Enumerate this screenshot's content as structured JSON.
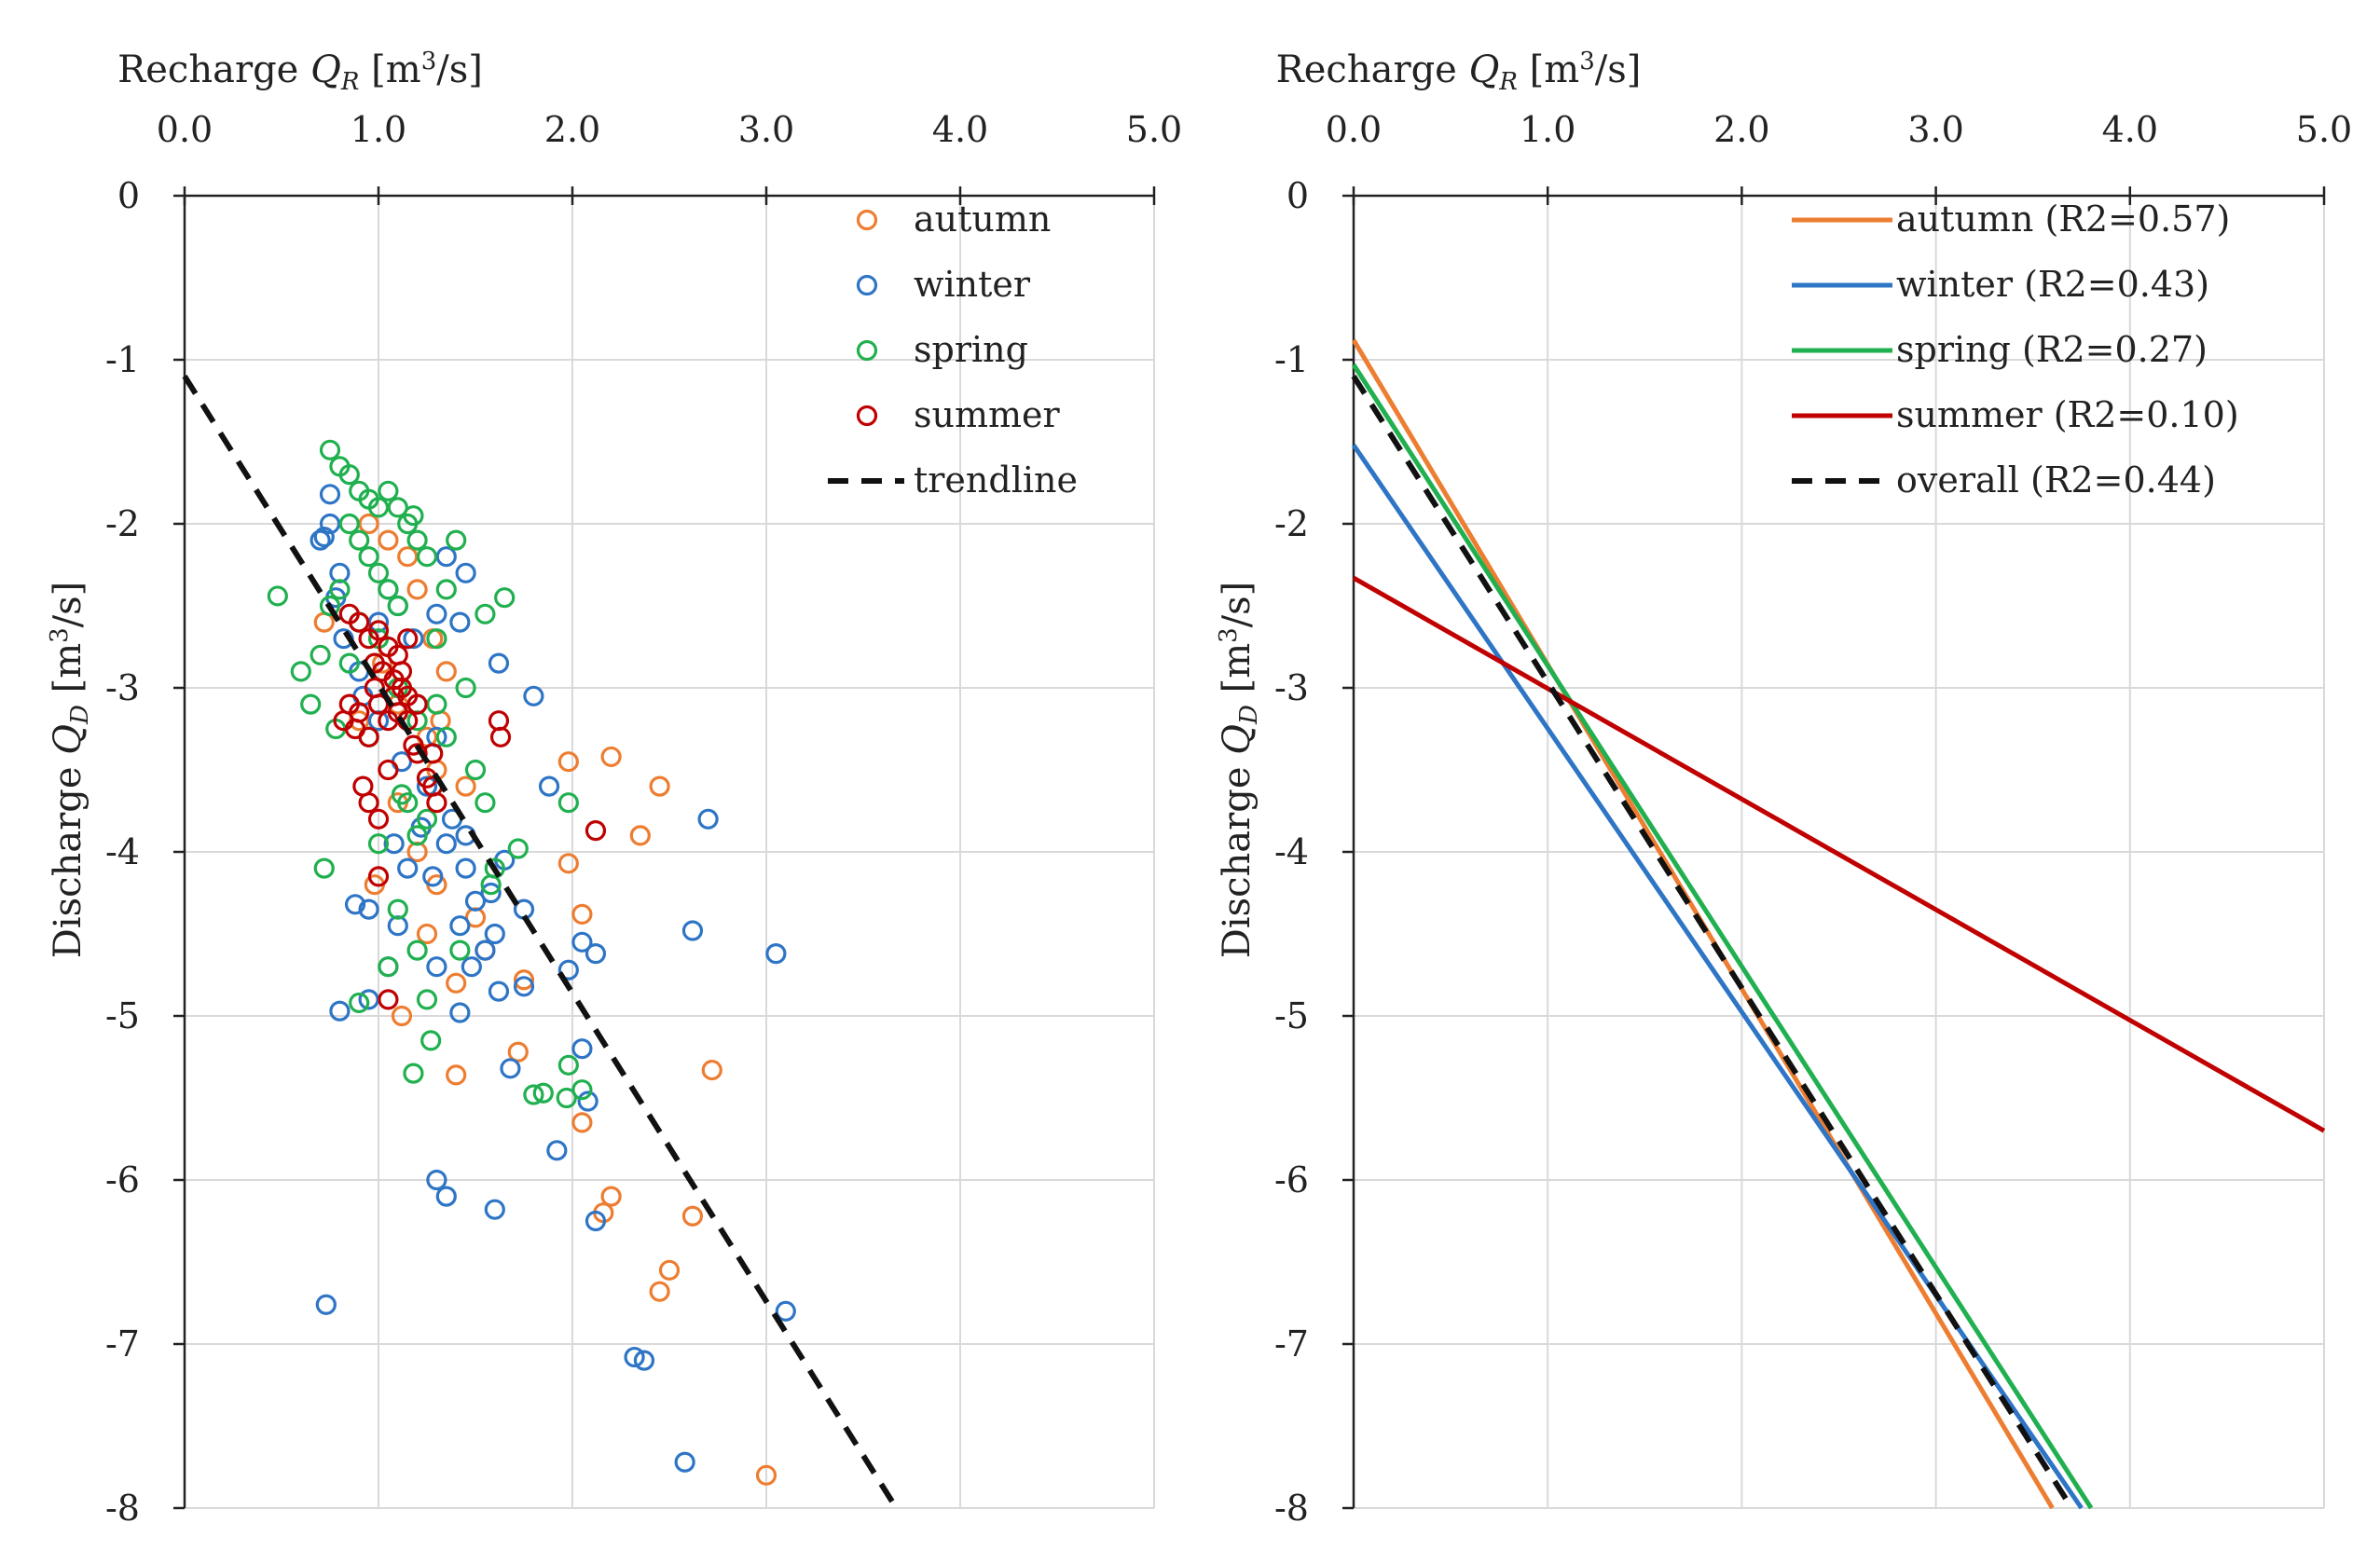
{
  "chart_data": [
    {
      "type": "scatter",
      "xlabel": "Recharge Q_R [m³/s]",
      "xlabel_parts": {
        "prefix": "Recharge ",
        "var": "Q",
        "sub": "R",
        "unit_open": " [m",
        "sup": "3",
        "unit_close": "/s]"
      },
      "ylabel": "Discharge Q_D [m³/s]",
      "ylabel_parts": {
        "prefix": "Discharge ",
        "var": "Q",
        "sub": "D",
        "unit_open": " [m",
        "sup": "3",
        "unit_close": "/s]"
      },
      "xlim": [
        0,
        5
      ],
      "ylim": [
        -8,
        0
      ],
      "x_ticks": [
        "0.0",
        "1.0",
        "2.0",
        "3.0",
        "4.0",
        "5.0"
      ],
      "y_ticks": [
        "0",
        "-1",
        "-2",
        "-3",
        "-4",
        "-5",
        "-6",
        "-7",
        "-8"
      ],
      "x_axis_position": "top",
      "grid": true,
      "legend_position": "top-right",
      "series": [
        {
          "name": "autumn",
          "color": "#ed7d31",
          "marker": "open-circle",
          "points": [
            [
              0.95,
              -2.0
            ],
            [
              1.05,
              -2.1
            ],
            [
              1.15,
              -2.2
            ],
            [
              1.2,
              -2.4
            ],
            [
              1.28,
              -2.7
            ],
            [
              1.35,
              -2.9
            ],
            [
              1.32,
              -3.2
            ],
            [
              0.72,
              -2.6
            ],
            [
              1.1,
              -3.1
            ],
            [
              1.25,
              -3.3
            ],
            [
              1.3,
              -3.5
            ],
            [
              1.45,
              -3.6
            ],
            [
              1.2,
              -4.0
            ],
            [
              1.3,
              -4.2
            ],
            [
              1.25,
              -4.5
            ],
            [
              1.5,
              -4.4
            ],
            [
              1.55,
              -4.6
            ],
            [
              1.4,
              -4.8
            ],
            [
              1.98,
              -3.45
            ],
            [
              2.2,
              -3.42
            ],
            [
              2.45,
              -3.6
            ],
            [
              2.35,
              -3.9
            ],
            [
              1.98,
              -4.07
            ],
            [
              2.05,
              -4.38
            ],
            [
              1.75,
              -4.78
            ],
            [
              1.4,
              -5.36
            ],
            [
              1.72,
              -5.22
            ],
            [
              2.05,
              -5.65
            ],
            [
              2.2,
              -6.1
            ],
            [
              2.16,
              -6.2
            ],
            [
              2.62,
              -6.22
            ],
            [
              2.5,
              -6.55
            ],
            [
              2.45,
              -6.68
            ],
            [
              2.72,
              -5.33
            ],
            [
              3.0,
              -7.8
            ],
            [
              1.12,
              -5.0
            ],
            [
              0.98,
              -4.2
            ],
            [
              1.1,
              -3.7
            ],
            [
              0.9,
              -3.2
            ],
            [
              1.02,
              -2.85
            ]
          ]
        },
        {
          "name": "winter",
          "color": "#2e75c6",
          "marker": "open-circle",
          "points": [
            [
              0.7,
              -2.1
            ],
            [
              0.75,
              -2.0
            ],
            [
              0.8,
              -2.3
            ],
            [
              0.75,
              -1.82
            ],
            [
              0.72,
              -2.08
            ],
            [
              0.78,
              -2.45
            ],
            [
              0.82,
              -2.7
            ],
            [
              0.9,
              -2.9
            ],
            [
              1.0,
              -2.6
            ],
            [
              1.05,
              -2.4
            ],
            [
              1.1,
              -2.5
            ],
            [
              1.18,
              -2.7
            ],
            [
              1.3,
              -2.55
            ],
            [
              1.42,
              -2.6
            ],
            [
              1.45,
              -2.3
            ],
            [
              1.35,
              -2.2
            ],
            [
              1.2,
              -3.1
            ],
            [
              1.3,
              -3.3
            ],
            [
              1.25,
              -3.6
            ],
            [
              1.38,
              -3.8
            ],
            [
              1.45,
              -4.1
            ],
            [
              1.5,
              -4.3
            ],
            [
              1.42,
              -4.45
            ],
            [
              1.55,
              -4.6
            ],
            [
              1.48,
              -4.7
            ],
            [
              1.6,
              -4.5
            ],
            [
              1.58,
              -4.25
            ],
            [
              1.65,
              -4.05
            ],
            [
              1.62,
              -2.85
            ],
            [
              1.75,
              -4.35
            ],
            [
              1.8,
              -3.05
            ],
            [
              1.88,
              -3.6
            ],
            [
              1.3,
              -4.7
            ],
            [
              1.1,
              -4.45
            ],
            [
              0.95,
              -4.35
            ],
            [
              0.88,
              -4.32
            ],
            [
              0.8,
              -4.97
            ],
            [
              0.95,
              -4.9
            ],
            [
              1.05,
              -4.7
            ],
            [
              1.42,
              -4.98
            ],
            [
              1.62,
              -4.85
            ],
            [
              1.75,
              -4.82
            ],
            [
              1.98,
              -4.72
            ],
            [
              2.05,
              -4.55
            ],
            [
              2.12,
              -4.62
            ],
            [
              2.62,
              -4.48
            ],
            [
              2.7,
              -3.8
            ],
            [
              3.05,
              -4.62
            ],
            [
              1.68,
              -5.32
            ],
            [
              2.05,
              -5.2
            ],
            [
              2.08,
              -5.52
            ],
            [
              1.92,
              -5.82
            ],
            [
              1.3,
              -6.0
            ],
            [
              1.35,
              -6.1
            ],
            [
              1.6,
              -6.18
            ],
            [
              2.12,
              -6.25
            ],
            [
              0.73,
              -6.76
            ],
            [
              3.1,
              -6.8
            ],
            [
              2.32,
              -7.08
            ],
            [
              2.37,
              -7.1
            ],
            [
              2.58,
              -7.72
            ],
            [
              1.0,
              -3.2
            ],
            [
              1.12,
              -3.45
            ],
            [
              1.22,
              -3.85
            ],
            [
              0.92,
              -3.05
            ],
            [
              1.08,
              -3.95
            ],
            [
              1.15,
              -4.1
            ],
            [
              1.28,
              -4.15
            ],
            [
              1.35,
              -3.95
            ],
            [
              1.45,
              -3.9
            ]
          ]
        },
        {
          "name": "spring",
          "color": "#20b04f",
          "marker": "open-circle",
          "points": [
            [
              0.75,
              -1.55
            ],
            [
              0.8,
              -1.65
            ],
            [
              0.85,
              -1.7
            ],
            [
              0.9,
              -1.8
            ],
            [
              0.95,
              -1.85
            ],
            [
              1.0,
              -1.9
            ],
            [
              1.05,
              -1.8
            ],
            [
              1.1,
              -1.9
            ],
            [
              1.15,
              -2.0
            ],
            [
              1.2,
              -2.1
            ],
            [
              1.25,
              -2.2
            ],
            [
              0.85,
              -2.0
            ],
            [
              0.9,
              -2.1
            ],
            [
              0.95,
              -2.2
            ],
            [
              1.0,
              -2.3
            ],
            [
              1.05,
              -2.4
            ],
            [
              1.1,
              -2.5
            ],
            [
              0.8,
              -2.4
            ],
            [
              0.75,
              -2.5
            ],
            [
              0.7,
              -2.8
            ],
            [
              0.6,
              -2.9
            ],
            [
              0.65,
              -3.1
            ],
            [
              0.9,
              -2.6
            ],
            [
              1.0,
              -2.7
            ],
            [
              0.48,
              -2.44
            ],
            [
              0.72,
              -4.1
            ],
            [
              0.9,
              -4.92
            ],
            [
              1.1,
              -4.35
            ],
            [
              1.2,
              -4.6
            ],
            [
              1.25,
              -4.9
            ],
            [
              1.27,
              -5.15
            ],
            [
              1.18,
              -5.35
            ],
            [
              1.05,
              -4.7
            ],
            [
              1.15,
              -3.7
            ],
            [
              1.2,
              -3.9
            ],
            [
              1.3,
              -3.1
            ],
            [
              1.35,
              -3.3
            ],
            [
              1.5,
              -3.5
            ],
            [
              1.55,
              -3.7
            ],
            [
              1.58,
              -4.2
            ],
            [
              1.72,
              -3.98
            ],
            [
              1.65,
              -2.45
            ],
            [
              1.55,
              -2.55
            ],
            [
              1.35,
              -2.4
            ],
            [
              1.98,
              -3.7
            ],
            [
              1.98,
              -5.3
            ],
            [
              2.05,
              -5.45
            ],
            [
              1.97,
              -5.5
            ],
            [
              1.8,
              -5.48
            ],
            [
              1.85,
              -5.47
            ],
            [
              1.42,
              -4.6
            ],
            [
              1.0,
              -3.95
            ],
            [
              1.12,
              -3.65
            ],
            [
              1.25,
              -3.8
            ],
            [
              0.95,
              -3.3
            ],
            [
              1.1,
              -3.0
            ],
            [
              1.2,
              -3.2
            ],
            [
              1.3,
              -2.7
            ],
            [
              0.85,
              -2.85
            ],
            [
              0.78,
              -3.25
            ],
            [
              1.45,
              -3.0
            ],
            [
              1.6,
              -4.1
            ],
            [
              1.4,
              -2.1
            ],
            [
              1.18,
              -1.95
            ]
          ]
        },
        {
          "name": "summer",
          "color": "#c00000",
          "marker": "open-circle",
          "points": [
            [
              0.85,
              -2.55
            ],
            [
              0.9,
              -2.6
            ],
            [
              0.95,
              -2.7
            ],
            [
              1.0,
              -2.65
            ],
            [
              1.05,
              -2.75
            ],
            [
              1.1,
              -2.8
            ],
            [
              1.15,
              -2.7
            ],
            [
              0.98,
              -2.85
            ],
            [
              1.02,
              -2.9
            ],
            [
              1.08,
              -2.95
            ],
            [
              1.12,
              -3.0
            ],
            [
              1.15,
              -3.05
            ],
            [
              1.2,
              -3.1
            ],
            [
              1.0,
              -3.1
            ],
            [
              1.05,
              -3.2
            ],
            [
              1.1,
              -3.15
            ],
            [
              0.85,
              -3.1
            ],
            [
              0.82,
              -3.2
            ],
            [
              0.9,
              -3.15
            ],
            [
              0.88,
              -3.25
            ],
            [
              0.95,
              -3.3
            ],
            [
              1.2,
              -3.4
            ],
            [
              1.28,
              -3.4
            ],
            [
              1.25,
              -3.55
            ],
            [
              1.3,
              -3.7
            ],
            [
              1.28,
              -3.6
            ],
            [
              1.05,
              -3.5
            ],
            [
              0.92,
              -3.6
            ],
            [
              0.95,
              -3.7
            ],
            [
              1.0,
              -3.8
            ],
            [
              1.0,
              -4.15
            ],
            [
              1.05,
              -4.9
            ],
            [
              1.62,
              -3.2
            ],
            [
              1.63,
              -3.3
            ],
            [
              2.12,
              -3.87
            ],
            [
              1.18,
              -3.35
            ],
            [
              1.12,
              -2.9
            ],
            [
              1.08,
              -3.05
            ],
            [
              0.98,
              -3.0
            ],
            [
              1.15,
              -3.2
            ]
          ]
        }
      ],
      "trendline": {
        "name": "trendline",
        "color": "#111111",
        "style": "dashed",
        "slope": -1.88,
        "intercept": -1.1,
        "x_range": [
          0.0,
          3.65
        ]
      }
    },
    {
      "type": "line",
      "xlabel": "Recharge Q_R [m³/s]",
      "xlabel_parts": {
        "prefix": "Recharge ",
        "var": "Q",
        "sub": "R",
        "unit_open": " [m",
        "sup": "3",
        "unit_close": "/s]"
      },
      "ylabel": "Discharge Q_D [m³/s]",
      "ylabel_parts": {
        "prefix": "Discharge ",
        "var": "Q",
        "sub": "D",
        "unit_open": " [m",
        "sup": "3",
        "unit_close": "/s]"
      },
      "xlim": [
        0,
        5
      ],
      "ylim": [
        -8,
        0
      ],
      "x_ticks": [
        "0.0",
        "1.0",
        "2.0",
        "3.0",
        "4.0",
        "5.0"
      ],
      "y_ticks": [
        "0",
        "-1",
        "-2",
        "-3",
        "-4",
        "-5",
        "-6",
        "-7",
        "-8"
      ],
      "x_axis_position": "top",
      "grid": true,
      "legend_position": "top-right",
      "series": [
        {
          "name": "autumn (R2=0.57)",
          "color": "#ed7d31",
          "style": "solid",
          "x": [
            0.0,
            3.6
          ],
          "y": [
            -0.88,
            -8.0
          ]
        },
        {
          "name": "winter (R2=0.43)",
          "color": "#2e75c6",
          "style": "solid",
          "x": [
            0.0,
            3.75
          ],
          "y": [
            -1.52,
            -8.0
          ]
        },
        {
          "name": "spring (R2=0.27)",
          "color": "#20b04f",
          "style": "solid",
          "x": [
            0.0,
            3.8
          ],
          "y": [
            -1.03,
            -8.0
          ]
        },
        {
          "name": "summer (R2=0.10)",
          "color": "#c00000",
          "style": "solid",
          "x": [
            0.0,
            5.0
          ],
          "y": [
            -2.33,
            -5.7
          ]
        },
        {
          "name": "overall (R2=0.44)",
          "color": "#111111",
          "style": "dashed",
          "x": [
            0.0,
            3.7
          ],
          "y": [
            -1.1,
            -8.0
          ]
        }
      ]
    }
  ]
}
